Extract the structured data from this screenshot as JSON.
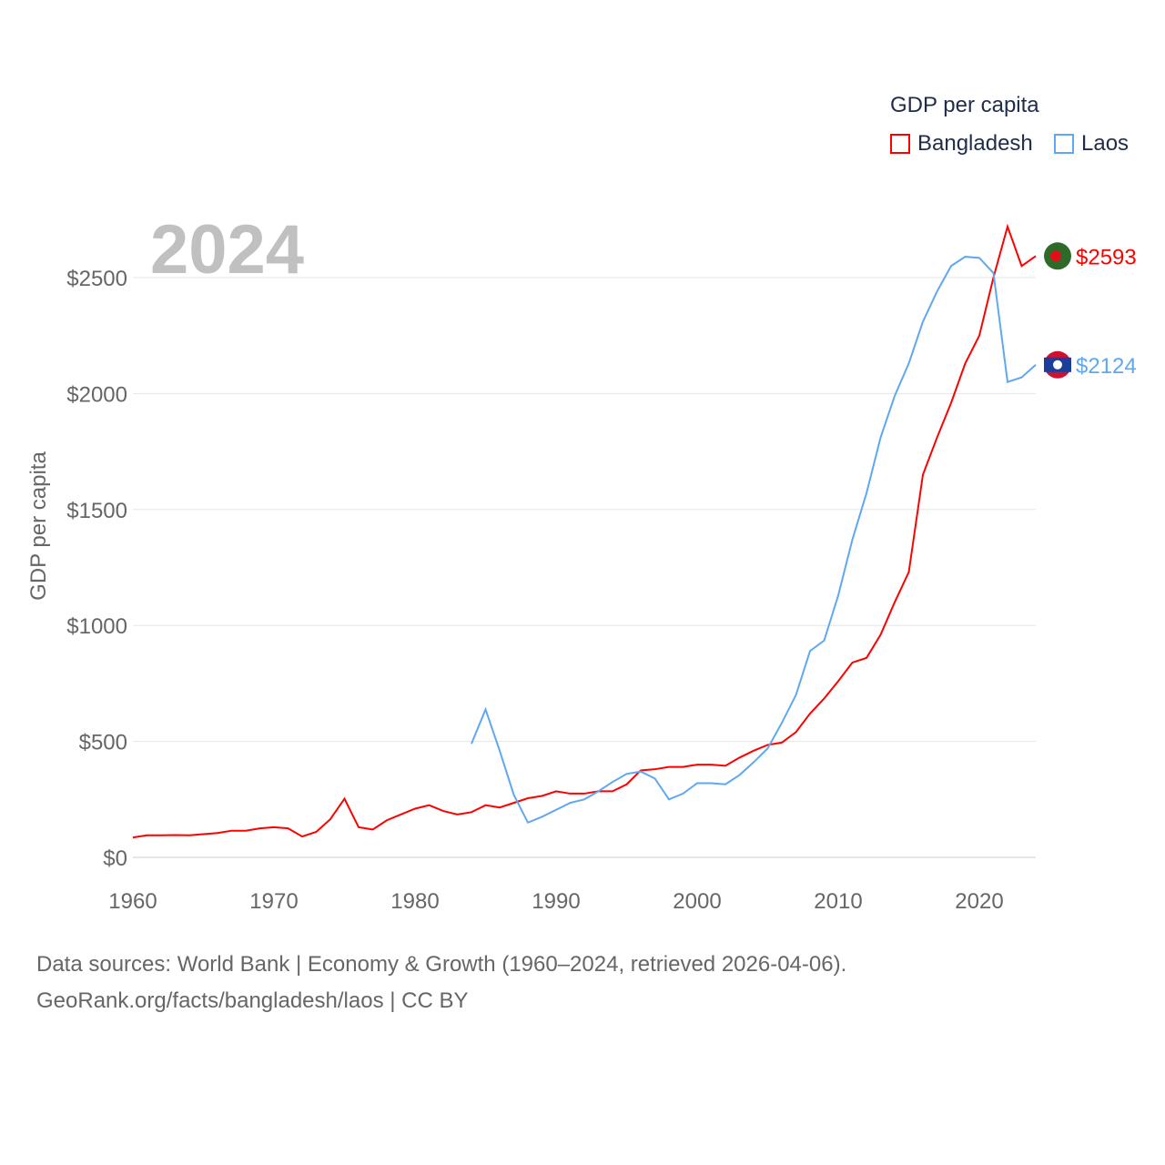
{
  "chart_data": {
    "type": "line",
    "title": "2024",
    "ylabel": "GDP per capita",
    "xlabel": "",
    "xlim": [
      1960,
      2024
    ],
    "ylim": [
      0,
      2500
    ],
    "x_ticks": [
      "1960",
      "1970",
      "1980",
      "1990",
      "2000",
      "2010",
      "2020"
    ],
    "y_ticks": [
      "$0",
      "$500",
      "$1000",
      "$1500",
      "$2000",
      "$2500"
    ],
    "legend_title": "GDP per capita",
    "legend_position": "top-right",
    "series": [
      {
        "name": "Bangladesh",
        "color": "#ff0000",
        "end_label": "$2593",
        "start_year": 1960,
        "values": [
          86,
          95,
          95,
          96,
          95,
          100,
          105,
          115,
          115,
          125,
          130,
          125,
          90,
          110,
          165,
          253,
          130,
          120,
          160,
          185,
          210,
          225,
          200,
          185,
          195,
          225,
          215,
          235,
          255,
          265,
          285,
          275,
          275,
          285,
          285,
          315,
          375,
          380,
          390,
          390,
          400,
          400,
          395,
          430,
          460,
          485,
          495,
          540,
          620,
          685,
          760,
          840,
          860,
          960,
          1100,
          1230,
          1650,
          1810,
          1960,
          2130,
          2250,
          2500,
          2720,
          2550,
          2593
        ]
      },
      {
        "name": "Laos",
        "color": "#5fa8f0",
        "end_label": "$2124",
        "start_year": 1984,
        "values": [
          490,
          638,
          460,
          270,
          150,
          175,
          205,
          235,
          250,
          285,
          325,
          360,
          370,
          340,
          250,
          275,
          320,
          320,
          315,
          355,
          410,
          470,
          580,
          700,
          890,
          935,
          1130,
          1370,
          1570,
          1810,
          1990,
          2130,
          2310,
          2440,
          2550,
          2590,
          2585,
          2520,
          2050,
          2070,
          2124
        ]
      }
    ]
  },
  "footer": {
    "line1": "Data sources: World Bank | Economy & Growth (1960–2024, retrieved 2026-04-06).",
    "line2": "GeoRank.org/facts/bangladesh/laos | CC BY"
  }
}
